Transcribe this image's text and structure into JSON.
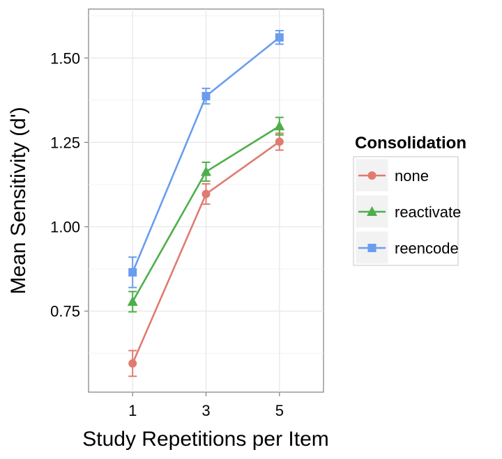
{
  "chart_data": {
    "type": "line",
    "title": "",
    "xlabel": "Study Repetitions per Item",
    "ylabel": "Mean Sensitivity (d')",
    "x": [
      1,
      3,
      5
    ],
    "x_tick_labels": [
      "1",
      "3",
      "5"
    ],
    "xlim": [
      -0.2,
      6.2
    ],
    "ylim": [
      0.51,
      1.645
    ],
    "y_ticks": [
      0.75,
      1.0,
      1.25,
      1.5
    ],
    "y_tick_labels": [
      "0.75",
      "1.00",
      "1.25",
      "1.50"
    ],
    "grid": true,
    "legend": {
      "title": "Consolidation",
      "placement": "right"
    },
    "series": [
      {
        "name": "none",
        "marker": "circle",
        "color": "#E07B70",
        "values": [
          0.595,
          1.097,
          1.252
        ],
        "error_low": [
          0.557,
          1.067,
          1.227
        ],
        "error_high": [
          0.633,
          1.127,
          1.277
        ]
      },
      {
        "name": "reactivate",
        "marker": "triangle",
        "color": "#4DAF4A",
        "values": [
          0.778,
          1.163,
          1.298
        ],
        "error_low": [
          0.748,
          1.135,
          1.272
        ],
        "error_high": [
          0.808,
          1.191,
          1.324
        ]
      },
      {
        "name": "reencode",
        "marker": "square",
        "color": "#6A9CF0",
        "values": [
          0.865,
          1.387,
          1.561
        ],
        "error_low": [
          0.82,
          1.364,
          1.541
        ],
        "error_high": [
          0.91,
          1.41,
          1.581
        ]
      }
    ]
  }
}
